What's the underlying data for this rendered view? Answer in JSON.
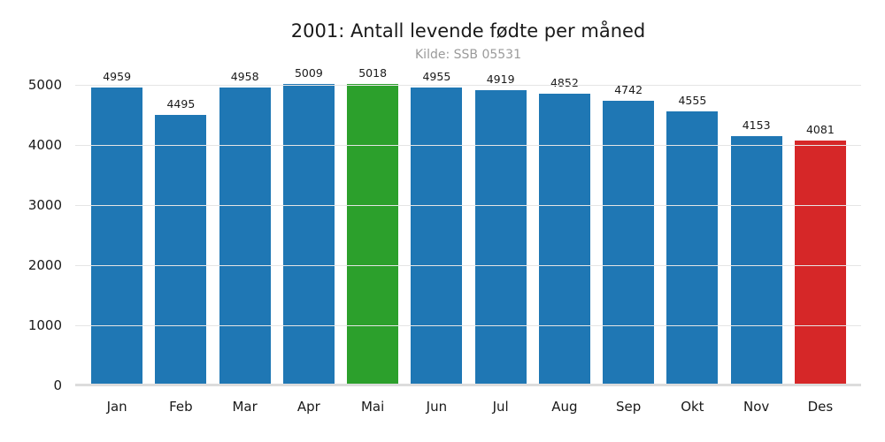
{
  "figure": {
    "title": "2001: Antall levende fødte per måned",
    "subtitle": "Kilde: SSB 05531"
  },
  "chart_data": {
    "type": "bar",
    "title": "2001: Antall levende fødte per måned",
    "subtitle": "Kilde: SSB 05531",
    "categories": [
      "Jan",
      "Feb",
      "Mar",
      "Apr",
      "Mai",
      "Jun",
      "Jul",
      "Aug",
      "Sep",
      "Okt",
      "Nov",
      "Des"
    ],
    "values": [
      4959,
      4495,
      4958,
      5009,
      5018,
      4955,
      4919,
      4852,
      4742,
      4555,
      4153,
      4081
    ],
    "bar_colors": [
      "#1f77b4",
      "#1f77b4",
      "#1f77b4",
      "#1f77b4",
      "#2ca02c",
      "#1f77b4",
      "#1f77b4",
      "#1f77b4",
      "#1f77b4",
      "#1f77b4",
      "#1f77b4",
      "#d62728"
    ],
    "default_bar_color": "#1f77b4",
    "max_bar_color": "#2ca02c",
    "min_bar_color": "#d62728",
    "value_labels": true,
    "xlabel": "",
    "ylabel": "",
    "yticks": [
      0,
      1000,
      2000,
      3000,
      4000,
      5000
    ],
    "ylim": [
      0,
      5270
    ],
    "grid": true,
    "gridline_color": "#e5e5e5",
    "axis_line_color": "#dcdcdc",
    "text_color": "#1a1a1a",
    "subtitle_color": "#9a9a9a",
    "legend": false
  }
}
